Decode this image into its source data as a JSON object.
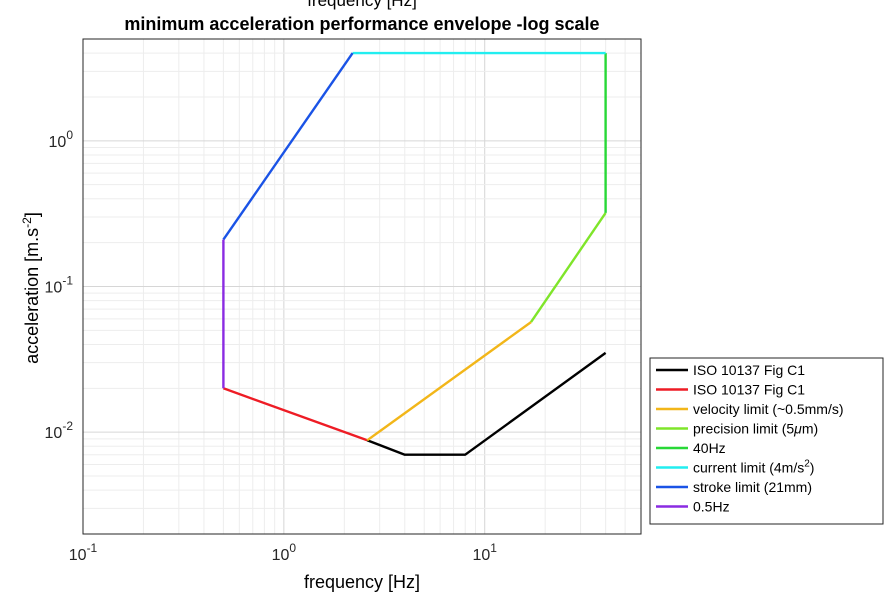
{
  "chart_data": {
    "type": "line",
    "title_top_clipped": "frequency [Hz]",
    "title": "minimum acceleration performance envelope -log scale",
    "xlabel": "frequency [Hz]",
    "ylabel": "acceleration [m.s⁻²]",
    "xscale": "log",
    "yscale": "log",
    "xlim": [
      0.1,
      60
    ],
    "ylim": [
      0.002,
      5
    ],
    "grid": true,
    "legend_position": "right",
    "x_ticks": [
      {
        "value": 0.1,
        "base": "10",
        "exp": "-1"
      },
      {
        "value": 1,
        "base": "10",
        "exp": "0"
      },
      {
        "value": 10,
        "base": "10",
        "exp": "1"
      }
    ],
    "y_ticks": [
      {
        "value": 0.01,
        "base": "10",
        "exp": "-2"
      },
      {
        "value": 0.1,
        "base": "10",
        "exp": "-1"
      },
      {
        "value": 1,
        "base": "10",
        "exp": "0"
      }
    ],
    "series": [
      {
        "name": "ISO 10137 Fig C1",
        "color": "#000000",
        "x": [
          2.6,
          4,
          8,
          40
        ],
        "y": [
          0.0088,
          0.007,
          0.007,
          0.035
        ]
      },
      {
        "name": "ISO 10137 Fig C1",
        "color": "#ee1c25",
        "x": [
          0.5,
          2.6
        ],
        "y": [
          0.02,
          0.0088
        ]
      },
      {
        "name": "velocity limit (~0.5mm/s)",
        "color": "#f2b619",
        "x": [
          2.6,
          17
        ],
        "y": [
          0.0088,
          0.057
        ]
      },
      {
        "name": "precision limit (5μm)",
        "color": "#7fe52a",
        "x": [
          17,
          40
        ],
        "y": [
          0.057,
          0.32
        ]
      },
      {
        "name": "40Hz",
        "color": "#28d837",
        "x": [
          40,
          40
        ],
        "y": [
          0.32,
          4
        ]
      },
      {
        "name": "current limit (4m/s²)",
        "color": "#22eef0",
        "x": [
          2.2,
          40
        ],
        "y": [
          4,
          4
        ]
      },
      {
        "name": "stroke limit (21mm)",
        "color": "#1a53e6",
        "x": [
          0.5,
          2.2
        ],
        "y": [
          0.21,
          4
        ]
      },
      {
        "name": "0.5Hz",
        "color": "#8a2be2",
        "x": [
          0.5,
          0.5
        ],
        "y": [
          0.02,
          0.21
        ]
      }
    ],
    "legend": [
      {
        "label": "ISO 10137 Fig C1",
        "color": "#000000"
      },
      {
        "label": "ISO 10137 Fig C1",
        "color": "#ee1c25"
      },
      {
        "label": "velocity limit (~0.5mm/s)",
        "color": "#f2b619"
      },
      {
        "label": "precision limit (5",
        "sym": "μ",
        "suffix": "m)",
        "color": "#7fe52a"
      },
      {
        "label": "40Hz",
        "color": "#28d837"
      },
      {
        "label": "current limit (4m/s",
        "sup": "2",
        "suffix": ")",
        "color": "#22eef0"
      },
      {
        "label": "stroke limit (21mm)",
        "color": "#1a53e6"
      },
      {
        "label": "0.5Hz",
        "color": "#8a2be2"
      }
    ]
  }
}
